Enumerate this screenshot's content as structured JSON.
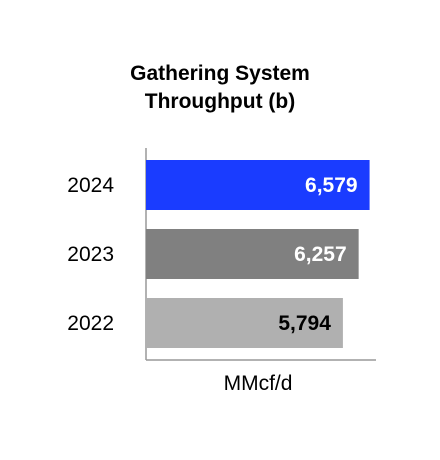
{
  "chart_data": {
    "type": "bar",
    "orientation": "horizontal",
    "title": "Gathering System Throughput (b)",
    "title_lines": [
      "Gathering System",
      "Throughput (b)"
    ],
    "categories": [
      "2024",
      "2023",
      "2022"
    ],
    "values": [
      6579,
      6257,
      5794
    ],
    "value_labels": [
      "6,579",
      "6,257",
      "5,794"
    ],
    "bar_colors": [
      "#1a3cff",
      "#808080",
      "#b0b0b0"
    ],
    "label_colors": [
      "#ffffff",
      "#ffffff",
      "#000000"
    ],
    "xlabel": "MMcf/d",
    "xlim": [
      0,
      6650
    ],
    "grid": false,
    "legend": "none"
  }
}
